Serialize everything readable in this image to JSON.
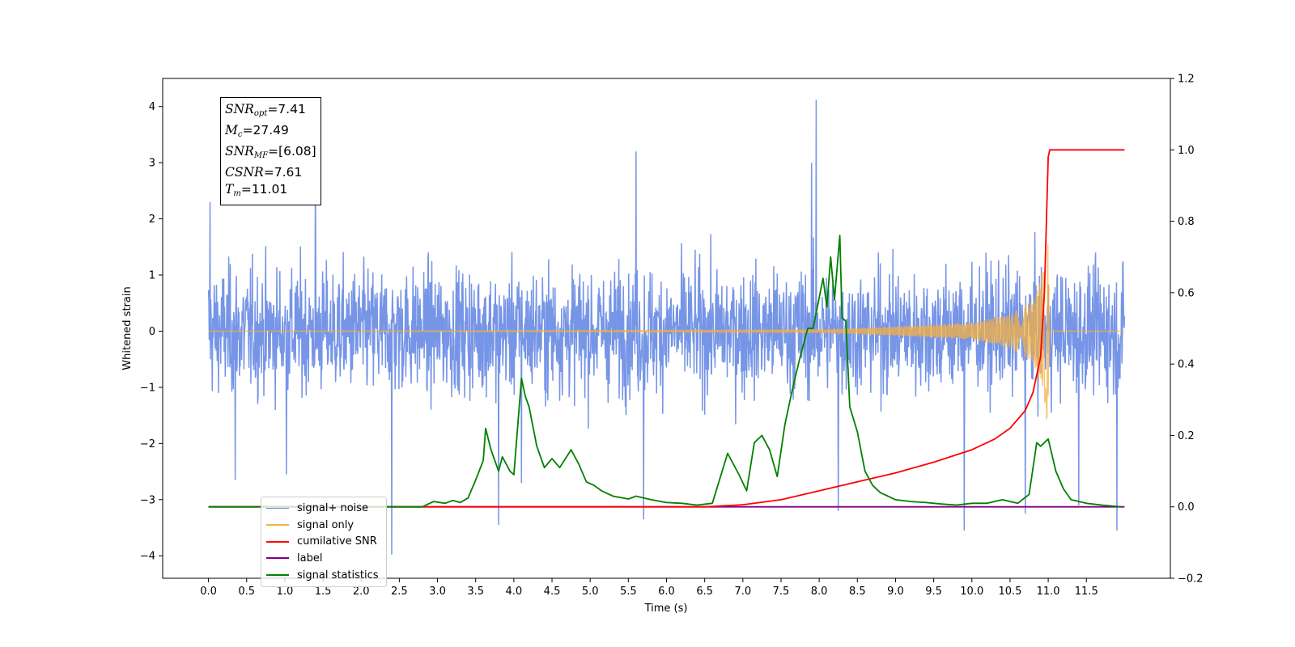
{
  "chart_data": {
    "type": "line",
    "xlabel": "Time (s)",
    "ylabel": "Whitened strain",
    "xlim": [
      -0.6,
      12.6
    ],
    "ylim_left": [
      -4.4,
      4.5
    ],
    "ylim_right": [
      -0.2,
      1.2
    ],
    "x_ticks": [
      "0.0",
      "0.5",
      "1.0",
      "1.5",
      "2.0",
      "2.5",
      "3.0",
      "3.5",
      "4.0",
      "4.5",
      "5.0",
      "5.5",
      "6.0",
      "6.5",
      "7.0",
      "7.5",
      "8.0",
      "8.5",
      "9.0",
      "9.5",
      "10.0",
      "10.5",
      "11.0",
      "11.5"
    ],
    "y_ticks_left": [
      "4",
      "3",
      "2",
      "1",
      "0",
      "−1",
      "−2",
      "−3",
      "−4"
    ],
    "y_ticks_right": [
      "1.2",
      "1.0",
      "0.8",
      "0.6",
      "0.4",
      "0.2",
      "0.0",
      "−0.2"
    ],
    "grid": false,
    "legend_placement": "lower-left",
    "series": [
      {
        "name": "signal+ noise",
        "color": "#6f8fe6",
        "axis": "left",
        "description": "dense whitened noise trace, envelope approx ±1.8 with spikes up to 4.1",
        "notable_peaks": [
          {
            "x": 0.02,
            "y": 2.3
          },
          {
            "x": 0.35,
            "y": -2.65
          },
          {
            "x": 1.02,
            "y": -2.55
          },
          {
            "x": 1.4,
            "y": 3.2
          },
          {
            "x": 2.4,
            "y": -3.98
          },
          {
            "x": 3.8,
            "y": -3.45
          },
          {
            "x": 4.1,
            "y": -2.7
          },
          {
            "x": 5.6,
            "y": 3.2
          },
          {
            "x": 5.7,
            "y": -3.35
          },
          {
            "x": 7.9,
            "y": 3.0
          },
          {
            "x": 7.96,
            "y": 4.12
          },
          {
            "x": 8.25,
            "y": -3.2
          },
          {
            "x": 9.9,
            "y": -3.55
          },
          {
            "x": 10.7,
            "y": -3.25
          },
          {
            "x": 11.4,
            "y": -3.1
          },
          {
            "x": 11.9,
            "y": -3.55
          }
        ]
      },
      {
        "name": "signal only",
        "color": "#f5b041",
        "axis": "left",
        "description": "chirp waveform, flat until ~8 s, growing oscillation to about ±1.9 at merger (11.0 s), flat after",
        "chirp_envelope": {
          "x": [
            0.0,
            8.0,
            9.0,
            10.0,
            10.5,
            10.8,
            10.95,
            11.0,
            11.02,
            12.0
          ],
          "y": [
            0.0,
            0.02,
            0.08,
            0.15,
            0.3,
            0.55,
            1.2,
            1.85,
            0.0,
            0.0
          ]
        }
      },
      {
        "name": "cumilative SNR",
        "color": "#ff0000",
        "axis": "right",
        "x": [
          0.0,
          6.5,
          7.0,
          7.5,
          8.0,
          8.5,
          9.0,
          9.5,
          10.0,
          10.3,
          10.5,
          10.7,
          10.8,
          10.9,
          10.95,
          11.0,
          11.02,
          12.0
        ],
        "y": [
          0.0,
          0.0,
          0.006,
          0.02,
          0.045,
          0.07,
          0.095,
          0.125,
          0.16,
          0.19,
          0.22,
          0.27,
          0.32,
          0.42,
          0.6,
          0.98,
          1.0,
          1.0
        ]
      },
      {
        "name": "label",
        "color": "#800080",
        "axis": "right",
        "x": [
          0.0,
          12.0
        ],
        "y": [
          0.0,
          0.0
        ]
      },
      {
        "name": "signal statistics",
        "color": "#008000",
        "axis": "right",
        "x": [
          0.0,
          2.8,
          2.95,
          3.1,
          3.2,
          3.3,
          3.4,
          3.5,
          3.6,
          3.63,
          3.7,
          3.8,
          3.85,
          3.95,
          4.0,
          4.1,
          4.15,
          4.2,
          4.3,
          4.4,
          4.5,
          4.6,
          4.75,
          4.85,
          4.95,
          5.05,
          5.15,
          5.3,
          5.5,
          5.6,
          5.8,
          6.0,
          6.2,
          6.4,
          6.6,
          6.8,
          6.95,
          7.05,
          7.15,
          7.25,
          7.35,
          7.45,
          7.55,
          7.65,
          7.75,
          7.85,
          7.92,
          8.05,
          8.1,
          8.15,
          8.2,
          8.27,
          8.3,
          8.35,
          8.4,
          8.5,
          8.6,
          8.7,
          8.8,
          9.0,
          9.2,
          9.4,
          9.6,
          9.8,
          10.0,
          10.2,
          10.4,
          10.6,
          10.75,
          10.85,
          10.9,
          11.0,
          11.1,
          11.2,
          11.3,
          11.5,
          11.7,
          11.95
        ],
        "y": [
          0.0,
          0.0,
          0.015,
          0.01,
          0.018,
          0.012,
          0.025,
          0.075,
          0.13,
          0.22,
          0.16,
          0.1,
          0.14,
          0.1,
          0.09,
          0.36,
          0.31,
          0.28,
          0.17,
          0.11,
          0.135,
          0.11,
          0.16,
          0.12,
          0.07,
          0.06,
          0.045,
          0.03,
          0.022,
          0.03,
          0.02,
          0.012,
          0.01,
          0.005,
          0.01,
          0.15,
          0.09,
          0.045,
          0.18,
          0.2,
          0.16,
          0.085,
          0.23,
          0.33,
          0.42,
          0.5,
          0.5,
          0.64,
          0.56,
          0.7,
          0.58,
          0.76,
          0.53,
          0.52,
          0.28,
          0.21,
          0.1,
          0.06,
          0.04,
          0.02,
          0.015,
          0.012,
          0.008,
          0.005,
          0.01,
          0.01,
          0.02,
          0.01,
          0.035,
          0.18,
          0.17,
          0.19,
          0.1,
          0.05,
          0.02,
          0.01,
          0.005,
          0.0
        ]
      }
    ],
    "legend_entries": [
      "signal+ noise",
      "signal only",
      "cumilative SNR",
      "label",
      "signal statistics"
    ],
    "annotation_box": {
      "snr_opt": "=7.41",
      "mc": "=27.49",
      "snr_mf": "=[6.08]",
      "csnr": "=7.61",
      "tm": "=11.01"
    }
  },
  "infobox": {
    "snr_base": "SNR",
    "snr_opt_sub": "opt",
    "snr_opt_val": "=7.41",
    "mc_base": "M",
    "mc_sub": "c",
    "mc_val": "=27.49",
    "snr_mf_sub": "MF",
    "snr_mf_val": "=[6.08]",
    "csnr_base": "CSNR",
    "csnr_val": "=7.61",
    "tm_base": "T",
    "tm_sub": "m",
    "tm_val": "=11.01"
  },
  "legend": {
    "signal_noise": "signal+ noise",
    "signal_only": "signal only",
    "cumulative_snr": "cumilative SNR",
    "label": "label",
    "signal_statistics": "signal statistics"
  },
  "colors": {
    "signal_noise": "#6f8fe6",
    "signal_only": "#f5b041",
    "cumulative_snr": "#ff0000",
    "label": "#800080",
    "signal_statistics": "#008000"
  }
}
